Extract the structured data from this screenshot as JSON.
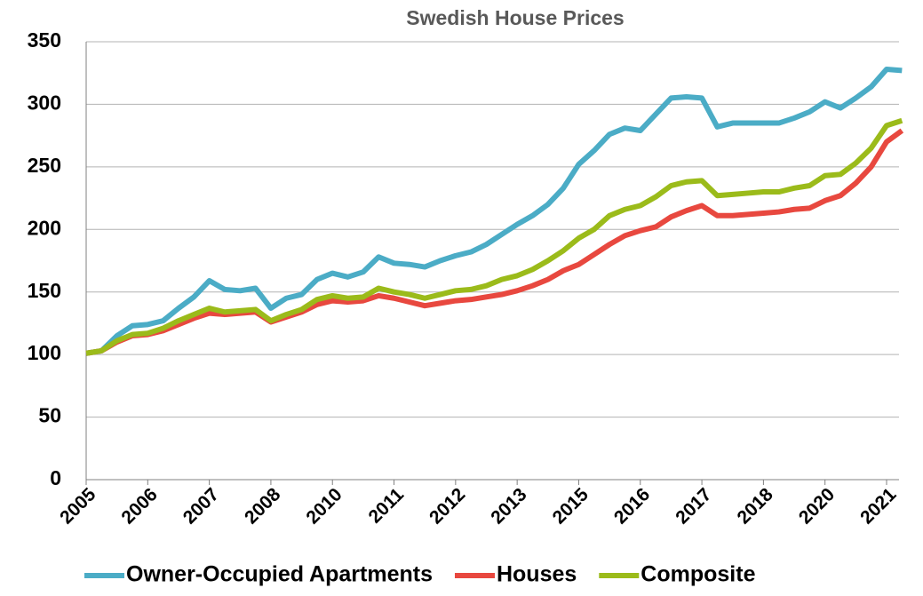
{
  "chart_data": {
    "type": "line",
    "title": "Swedish House Prices",
    "categories": [
      "2005",
      null,
      null,
      null,
      "2006",
      null,
      null,
      null,
      "2007",
      null,
      null,
      null,
      "2008",
      null,
      null,
      null,
      "2010",
      null,
      null,
      null,
      "2011",
      null,
      null,
      null,
      "2012",
      null,
      null,
      null,
      "2013",
      null,
      null,
      null,
      "2015",
      null,
      null,
      null,
      "2016",
      null,
      null,
      null,
      "2017",
      null,
      null,
      null,
      "2018",
      null,
      null,
      null,
      "2020",
      null,
      null,
      null,
      "2021",
      null
    ],
    "series": [
      {
        "name": "Owner-Occupied Apartments",
        "color": "#4bacc6",
        "values": [
          101,
          103,
          115,
          123,
          124,
          127,
          137,
          146,
          159,
          152,
          151,
          153,
          137,
          145,
          148,
          160,
          165,
          162,
          166,
          178,
          173,
          172,
          170,
          175,
          179,
          182,
          188,
          196,
          204,
          211,
          220,
          233,
          252,
          263,
          276,
          281,
          279,
          292,
          305,
          306,
          305,
          282,
          285,
          285,
          285,
          285,
          289,
          294,
          302,
          297,
          305,
          314,
          328,
          327
        ]
      },
      {
        "name": "Houses",
        "color": "#e8483f",
        "values": [
          101,
          103,
          110,
          115,
          116,
          119,
          124,
          129,
          133,
          132,
          133,
          134,
          126,
          130,
          134,
          140,
          143,
          142,
          143,
          147,
          145,
          142,
          139,
          141,
          143,
          144,
          146,
          148,
          151,
          155,
          160,
          167,
          172,
          180,
          188,
          195,
          199,
          202,
          210,
          215,
          219,
          211,
          211,
          212,
          213,
          214,
          216,
          217,
          223,
          227,
          237,
          250,
          270,
          279
        ]
      },
      {
        "name": "Composite",
        "color": "#9bbb1a",
        "values": [
          101,
          103,
          111,
          116,
          117,
          121,
          127,
          132,
          137,
          134,
          135,
          136,
          127,
          132,
          136,
          144,
          147,
          145,
          146,
          153,
          150,
          148,
          145,
          148,
          151,
          152,
          155,
          160,
          163,
          168,
          175,
          183,
          193,
          200,
          211,
          216,
          219,
          226,
          235,
          238,
          239,
          227,
          228,
          229,
          230,
          230,
          233,
          235,
          243,
          244,
          253,
          265,
          283,
          287
        ]
      }
    ],
    "ylim": [
      0,
      350
    ],
    "yticks": [
      0,
      50,
      100,
      150,
      200,
      250,
      300,
      350
    ],
    "grid": true,
    "legend": "bottom"
  }
}
